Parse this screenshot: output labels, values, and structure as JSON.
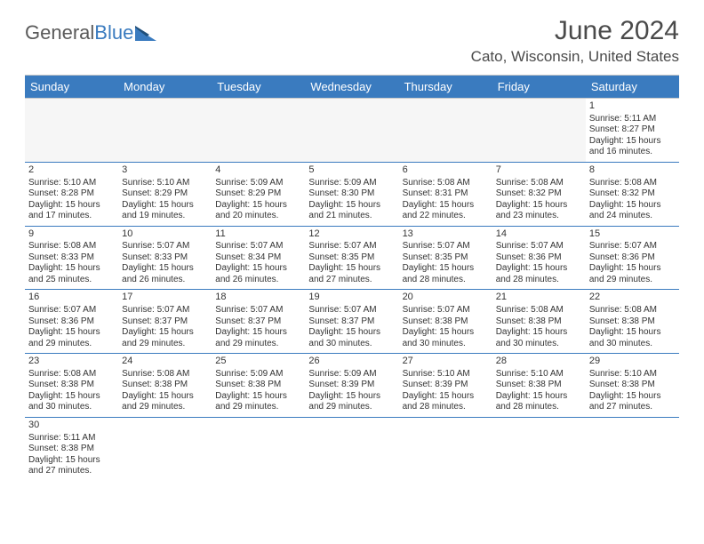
{
  "logo": {
    "text_a": "General",
    "text_b": "Blue"
  },
  "title": "June 2024",
  "location": "Cato, Wisconsin, United States",
  "header_bg": "#3a7bbf",
  "header_fg": "#ffffff",
  "week_divider": "#3a7bbf",
  "weekdays": [
    "Sunday",
    "Monday",
    "Tuesday",
    "Wednesday",
    "Thursday",
    "Friday",
    "Saturday"
  ],
  "weeks": [
    [
      null,
      null,
      null,
      null,
      null,
      null,
      {
        "n": "1",
        "sunrise": "5:11 AM",
        "sunset": "8:27 PM",
        "daylight": "15 hours and 16 minutes."
      }
    ],
    [
      {
        "n": "2",
        "sunrise": "5:10 AM",
        "sunset": "8:28 PM",
        "daylight": "15 hours and 17 minutes."
      },
      {
        "n": "3",
        "sunrise": "5:10 AM",
        "sunset": "8:29 PM",
        "daylight": "15 hours and 19 minutes."
      },
      {
        "n": "4",
        "sunrise": "5:09 AM",
        "sunset": "8:29 PM",
        "daylight": "15 hours and 20 minutes."
      },
      {
        "n": "5",
        "sunrise": "5:09 AM",
        "sunset": "8:30 PM",
        "daylight": "15 hours and 21 minutes."
      },
      {
        "n": "6",
        "sunrise": "5:08 AM",
        "sunset": "8:31 PM",
        "daylight": "15 hours and 22 minutes."
      },
      {
        "n": "7",
        "sunrise": "5:08 AM",
        "sunset": "8:32 PM",
        "daylight": "15 hours and 23 minutes."
      },
      {
        "n": "8",
        "sunrise": "5:08 AM",
        "sunset": "8:32 PM",
        "daylight": "15 hours and 24 minutes."
      }
    ],
    [
      {
        "n": "9",
        "sunrise": "5:08 AM",
        "sunset": "8:33 PM",
        "daylight": "15 hours and 25 minutes."
      },
      {
        "n": "10",
        "sunrise": "5:07 AM",
        "sunset": "8:33 PM",
        "daylight": "15 hours and 26 minutes."
      },
      {
        "n": "11",
        "sunrise": "5:07 AM",
        "sunset": "8:34 PM",
        "daylight": "15 hours and 26 minutes."
      },
      {
        "n": "12",
        "sunrise": "5:07 AM",
        "sunset": "8:35 PM",
        "daylight": "15 hours and 27 minutes."
      },
      {
        "n": "13",
        "sunrise": "5:07 AM",
        "sunset": "8:35 PM",
        "daylight": "15 hours and 28 minutes."
      },
      {
        "n": "14",
        "sunrise": "5:07 AM",
        "sunset": "8:36 PM",
        "daylight": "15 hours and 28 minutes."
      },
      {
        "n": "15",
        "sunrise": "5:07 AM",
        "sunset": "8:36 PM",
        "daylight": "15 hours and 29 minutes."
      }
    ],
    [
      {
        "n": "16",
        "sunrise": "5:07 AM",
        "sunset": "8:36 PM",
        "daylight": "15 hours and 29 minutes."
      },
      {
        "n": "17",
        "sunrise": "5:07 AM",
        "sunset": "8:37 PM",
        "daylight": "15 hours and 29 minutes."
      },
      {
        "n": "18",
        "sunrise": "5:07 AM",
        "sunset": "8:37 PM",
        "daylight": "15 hours and 29 minutes."
      },
      {
        "n": "19",
        "sunrise": "5:07 AM",
        "sunset": "8:37 PM",
        "daylight": "15 hours and 30 minutes."
      },
      {
        "n": "20",
        "sunrise": "5:07 AM",
        "sunset": "8:38 PM",
        "daylight": "15 hours and 30 minutes."
      },
      {
        "n": "21",
        "sunrise": "5:08 AM",
        "sunset": "8:38 PM",
        "daylight": "15 hours and 30 minutes."
      },
      {
        "n": "22",
        "sunrise": "5:08 AM",
        "sunset": "8:38 PM",
        "daylight": "15 hours and 30 minutes."
      }
    ],
    [
      {
        "n": "23",
        "sunrise": "5:08 AM",
        "sunset": "8:38 PM",
        "daylight": "15 hours and 30 minutes."
      },
      {
        "n": "24",
        "sunrise": "5:08 AM",
        "sunset": "8:38 PM",
        "daylight": "15 hours and 29 minutes."
      },
      {
        "n": "25",
        "sunrise": "5:09 AM",
        "sunset": "8:38 PM",
        "daylight": "15 hours and 29 minutes."
      },
      {
        "n": "26",
        "sunrise": "5:09 AM",
        "sunset": "8:39 PM",
        "daylight": "15 hours and 29 minutes."
      },
      {
        "n": "27",
        "sunrise": "5:10 AM",
        "sunset": "8:39 PM",
        "daylight": "15 hours and 28 minutes."
      },
      {
        "n": "28",
        "sunrise": "5:10 AM",
        "sunset": "8:38 PM",
        "daylight": "15 hours and 28 minutes."
      },
      {
        "n": "29",
        "sunrise": "5:10 AM",
        "sunset": "8:38 PM",
        "daylight": "15 hours and 27 minutes."
      }
    ],
    [
      {
        "n": "30",
        "sunrise": "5:11 AM",
        "sunset": "8:38 PM",
        "daylight": "15 hours and 27 minutes."
      },
      null,
      null,
      null,
      null,
      null,
      null
    ]
  ],
  "labels": {
    "sunrise": "Sunrise:",
    "sunset": "Sunset:",
    "daylight": "Daylight:"
  }
}
